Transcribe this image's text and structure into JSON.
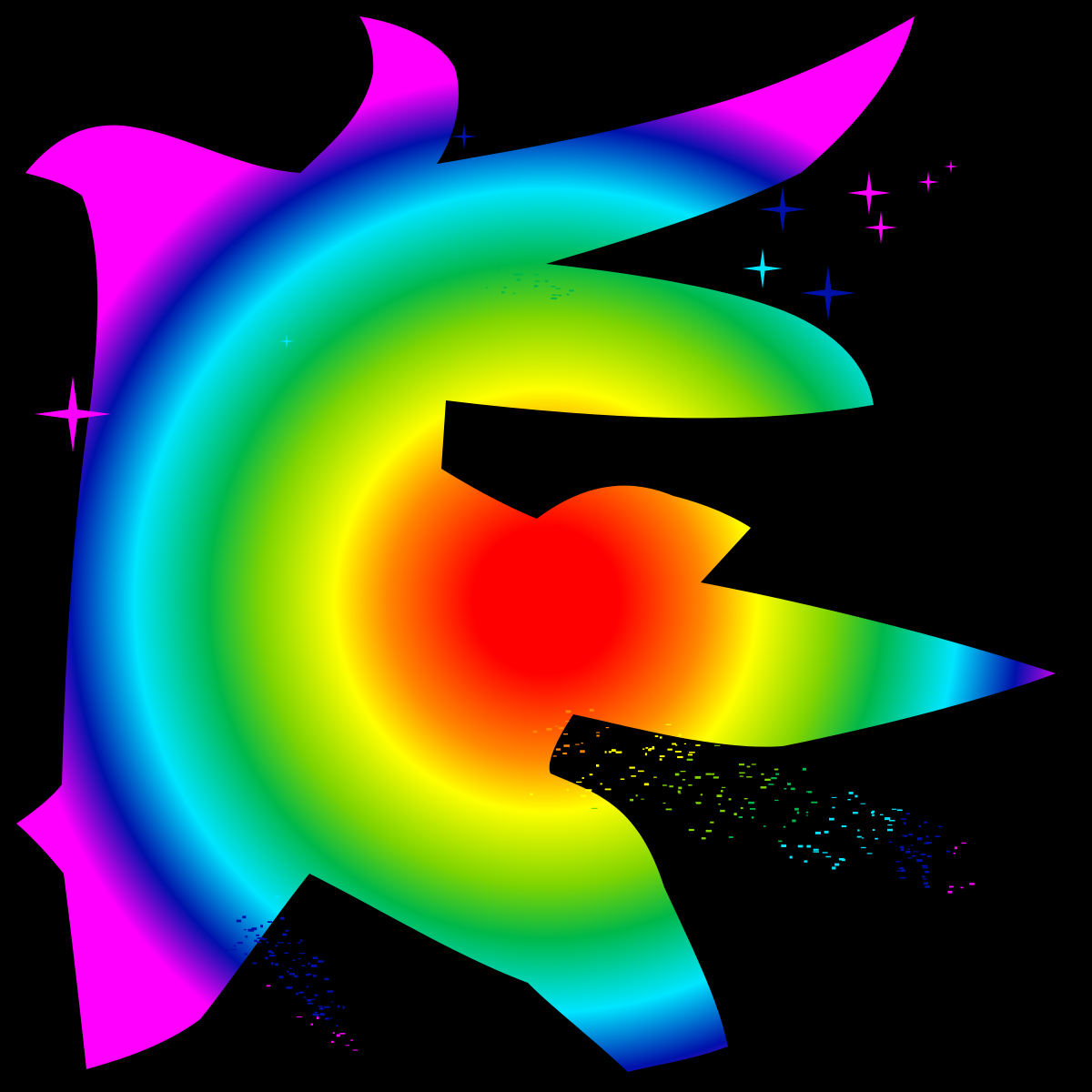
{
  "image": {
    "subject": "logo",
    "logo_icon": "rainbow-stylized-letter-e-icon",
    "background_color": "#000000",
    "gradient": {
      "type": "radial",
      "stops": [
        {
          "offset": 0.0,
          "color": "#ff0000"
        },
        {
          "offset": 0.14,
          "color": "#ff0000"
        },
        {
          "offset": 0.3,
          "color": "#ff8800"
        },
        {
          "offset": 0.4,
          "color": "#ffff00"
        },
        {
          "offset": 0.54,
          "color": "#7fd400"
        },
        {
          "offset": 0.64,
          "color": "#00b84a"
        },
        {
          "offset": 0.78,
          "color": "#00e5ff"
        },
        {
          "offset": 0.9,
          "color": "#0011aa"
        },
        {
          "offset": 1.0,
          "color": "#ff00ff"
        }
      ]
    },
    "decorations": [
      "sparkle-icon",
      "particle-spray-icon"
    ]
  }
}
